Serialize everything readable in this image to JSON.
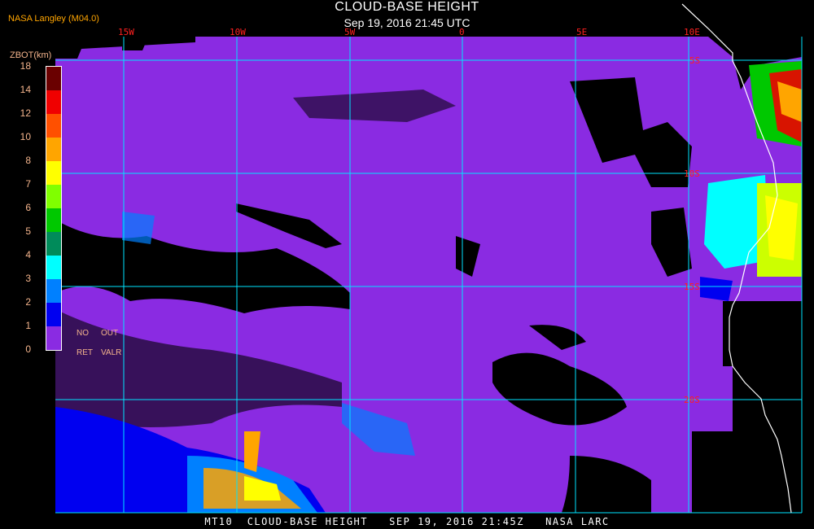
{
  "header": {
    "title": "CLOUD-BASE HEIGHT",
    "subtitle": "Sep 19, 2016 21:45 UTC",
    "producer": "NASA Langley (M04.0)"
  },
  "legend": {
    "title": "ZBOT(km)",
    "ticks": [
      "0",
      "1",
      "2",
      "3",
      "4",
      "5",
      "6",
      "7",
      "8",
      "10",
      "12",
      "14",
      "18"
    ],
    "colors": [
      "#8a2be2",
      "#0000f0",
      "#0080ff",
      "#00ffff",
      "#008b5a",
      "#00c800",
      "#80ff00",
      "#ffff00",
      "#ffa500",
      "#ff5000",
      "#f00000",
      "#6a0000"
    ],
    "no_retrieval_label": [
      "NO",
      "RET"
    ],
    "out_of_range_label": [
      "OUT",
      "VALR"
    ]
  },
  "map": {
    "longitude_labels": [
      "15W",
      "10W",
      "5W",
      "0",
      "5E",
      "10E"
    ],
    "latitude_labels": [
      "5S",
      "10S",
      "15S",
      "20S"
    ],
    "grid_color": "#00e5ff",
    "background_color": "#8a2be2",
    "coastline_color": "#ffffff"
  },
  "footer": {
    "text": "MT10  CLOUD-BASE HEIGHT   SEP 19, 2016 21:45Z   NASA LARC"
  }
}
